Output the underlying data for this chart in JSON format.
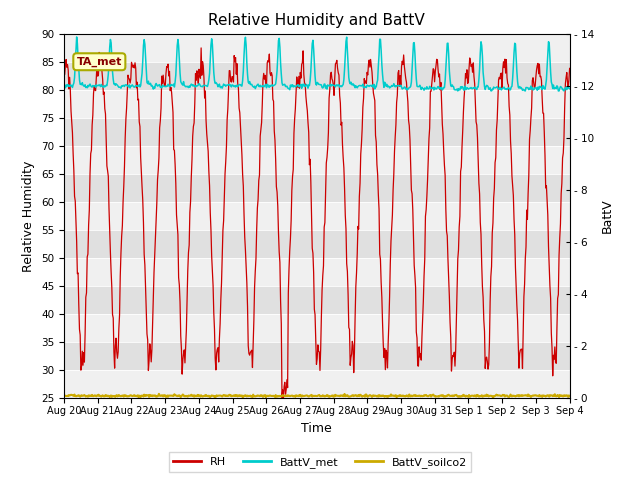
{
  "title": "Relative Humidity and BattV",
  "xlabel": "Time",
  "ylabel_left": "Relative Humidity",
  "ylabel_right": "BattV",
  "ylim_left": [
    25,
    90
  ],
  "ylim_right": [
    0,
    14
  ],
  "yticks_left": [
    25,
    30,
    35,
    40,
    45,
    50,
    55,
    60,
    65,
    70,
    75,
    80,
    85,
    90
  ],
  "yticks_right": [
    0,
    2,
    4,
    6,
    8,
    10,
    12,
    14
  ],
  "fig_bg_color": "#ffffff",
  "plot_bg_color": "#e8e8e8",
  "band_color_light": "#f0f0f0",
  "band_color_dark": "#e0e0e0",
  "rh_color": "#cc0000",
  "battv_met_color": "#00cccc",
  "battv_soilco2_color": "#ccaa00",
  "legend_label_rh": "RH",
  "legend_label_batt_met": "BattV_met",
  "legend_label_batt_soil": "BattV_soilco2",
  "annotation_text": "TA_met",
  "x_tick_labels": [
    "Aug 20",
    "Aug 21",
    "Aug 22",
    "Aug 23",
    "Aug 24",
    "Aug 25",
    "Aug 26",
    "Aug 27",
    "Aug 28",
    "Aug 29",
    "Aug 30",
    "Aug 31",
    "Sep 1",
    "Sep 2",
    "Sep 3",
    "Sep 4"
  ],
  "num_days": 15
}
